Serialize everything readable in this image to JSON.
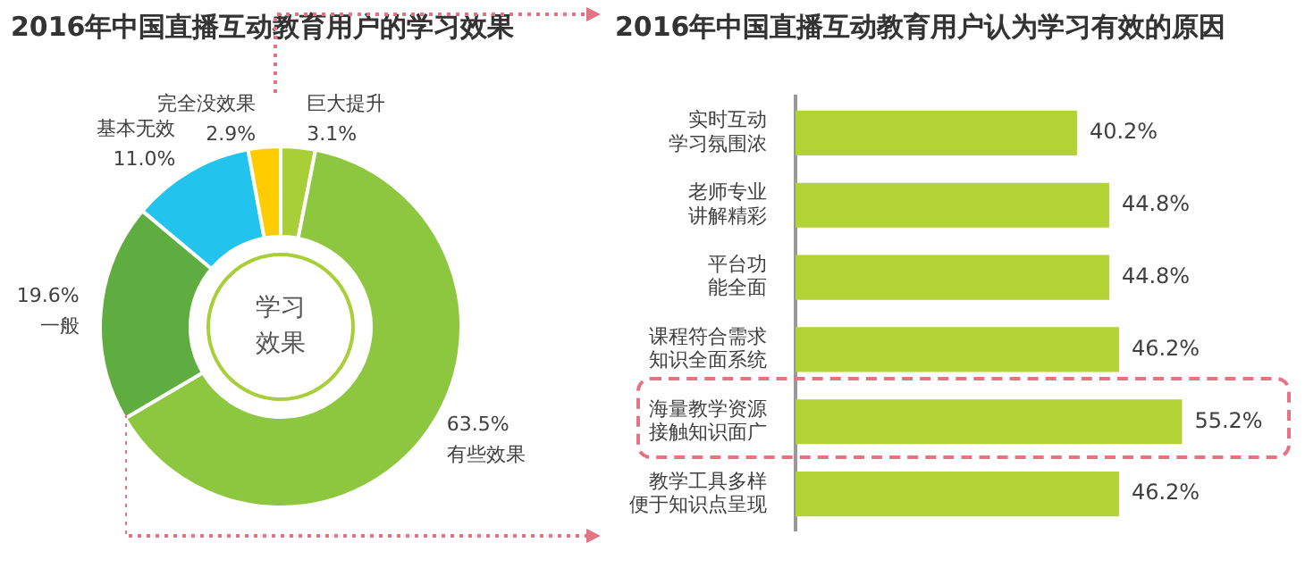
{
  "chart_data": [
    {
      "type": "donut",
      "title": "2016年中国直播互动教育用户的学习效果",
      "categories": [
        "巨大提升",
        "有些效果",
        "一般",
        "基本无效",
        "完全没效果"
      ],
      "values": [
        3.1,
        63.5,
        19.6,
        11.0,
        2.9
      ],
      "colors": [
        "#a9cf38",
        "#8dc63f",
        "#5fad41",
        "#22c4ee",
        "#ffcc00"
      ],
      "value_labels": [
        "3.1%",
        "63.5%",
        "19.6%",
        "11.0%",
        "2.9%"
      ],
      "annotations": [
        "学习效果"
      ],
      "legend": false
    },
    {
      "type": "bar",
      "orientation": "horizontal",
      "title": "2016年中国直播互动教育用户认为学习有效的原因",
      "categories": [
        "实时互动学习氛围浓",
        "老师专业讲解精彩",
        "平台功能全面",
        "课程符合需求知识全面系统",
        "海量教学资源接触知识面广",
        "教学工具多样便于知识点呈现"
      ],
      "values": [
        40.2,
        44.8,
        44.8,
        46.2,
        55.2,
        46.2
      ],
      "color": "#b2d235",
      "value_labels": [
        "40.2%",
        "44.8%",
        "44.8%",
        "46.2%",
        "55.2%",
        "46.2%"
      ],
      "legend": false,
      "grid": false
    }
  ]
}
